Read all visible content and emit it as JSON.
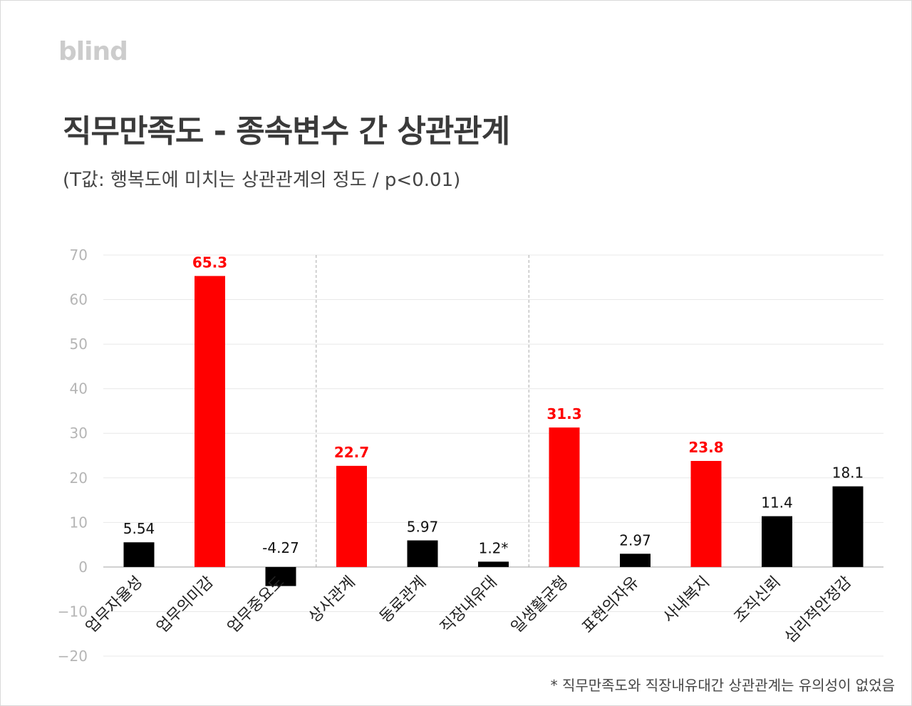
{
  "logo": "blind",
  "footnote": "* 직무만족도와 직장내유대간 상관관계는 유의성이 없었음",
  "colors": {
    "highlight": "#ff0000",
    "normal": "#000000",
    "grid": "#e8e8e8",
    "tick": "#b5b5b5"
  },
  "chart_data": {
    "type": "bar",
    "title": "직무만족도 - 종속변수 간 상관관계",
    "subtitle": "(T값: 행복도에 미치는 상관관계의 정도 / p<0.01)",
    "xlabel": "",
    "ylabel": "",
    "ylim": [
      -20,
      70
    ],
    "yticks": [
      70,
      60,
      50,
      40,
      30,
      20,
      10,
      0,
      -10,
      -20
    ],
    "grid": true,
    "legend": "none",
    "categories": [
      "업무자율성",
      "업무의미감",
      "업무중요도",
      "상사관계",
      "동료관계",
      "직장내유대",
      "일생활균형",
      "표현의자유",
      "사내복지",
      "조직신뢰",
      "심리적안정감"
    ],
    "values": [
      5.54,
      65.3,
      -4.27,
      22.7,
      5.97,
      1.2,
      31.3,
      2.97,
      23.8,
      11.4,
      18.1
    ],
    "value_labels": [
      "5.54",
      "65.3",
      "-4.27",
      "22.7",
      "5.97",
      "1.2*",
      "31.3",
      "2.97",
      "23.8",
      "11.4",
      "18.1"
    ],
    "highlighted": [
      false,
      true,
      false,
      true,
      false,
      false,
      true,
      false,
      true,
      false,
      false
    ],
    "group_separators_after": [
      2,
      5
    ]
  }
}
